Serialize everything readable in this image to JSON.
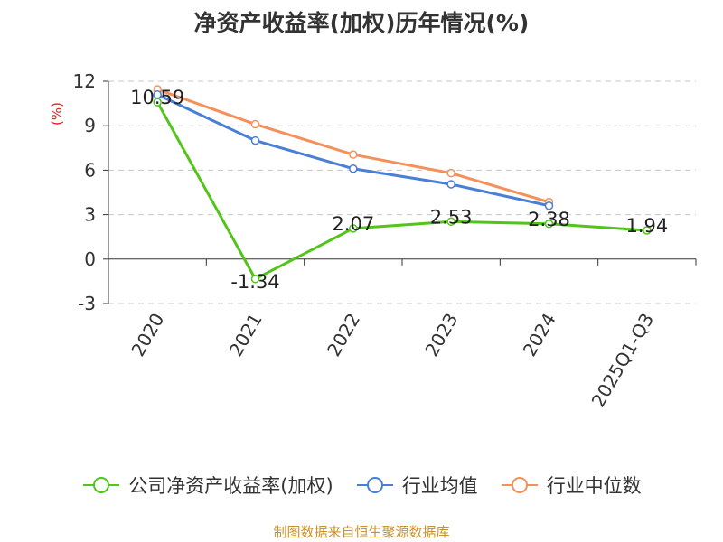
{
  "chart_data": {
    "type": "line",
    "title": "净资产收益率(加权)历年情况(%)",
    "xlabel": "",
    "ylabel": "(%)",
    "categories": [
      "2020",
      "2021",
      "2022",
      "2023",
      "2024",
      "2025Q1-Q3"
    ],
    "ylim": [
      -3,
      12
    ],
    "yticks": [
      -3,
      0,
      3,
      6,
      9,
      12
    ],
    "grid": true,
    "legend_position": "bottom",
    "series": [
      {
        "name": "公司净资产收益率(加权)",
        "color": "#52c41a",
        "values": [
          10.59,
          -1.34,
          2.07,
          2.53,
          2.38,
          1.94
        ],
        "labels": [
          "10.59",
          "-1.34",
          "2.07",
          "2.53",
          "2.38",
          "1.94"
        ]
      },
      {
        "name": "行业均值",
        "color": "#4a7fd6",
        "values": [
          11.1,
          8.0,
          6.1,
          5.05,
          3.6,
          null
        ]
      },
      {
        "name": "行业中位数",
        "color": "#f5905a",
        "values": [
          11.45,
          9.1,
          7.05,
          5.8,
          3.85,
          null
        ]
      }
    ]
  },
  "footer": {
    "source": "制图数据来自恒生聚源数据库"
  }
}
